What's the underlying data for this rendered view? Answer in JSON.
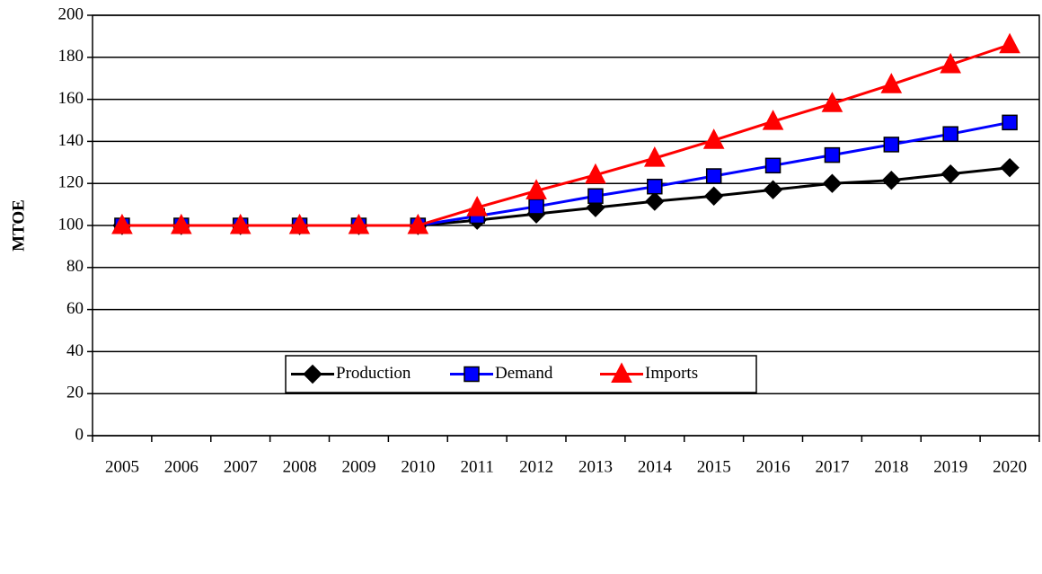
{
  "chart_data": {
    "type": "line",
    "y_label": "MTOE",
    "categories": [
      "2005",
      "2006",
      "2007",
      "2008",
      "2009",
      "2010",
      "2011",
      "2012",
      "2013",
      "2014",
      "2015",
      "2016",
      "2017",
      "2018",
      "2019",
      "2020"
    ],
    "series": [
      {
        "name": "Production",
        "color": "#000000",
        "marker": "diamond",
        "values": [
          100,
          100,
          100,
          100,
          100,
          100,
          102.5,
          105.5,
          108.5,
          111.5,
          114,
          117,
          120,
          121.5,
          124.5,
          127.5
        ]
      },
      {
        "name": "Demand",
        "color": "#0000ff",
        "marker": "square",
        "values": [
          100,
          100,
          100,
          100,
          100,
          100,
          104.5,
          109,
          114,
          118.5,
          123.5,
          128.5,
          133.5,
          138.5,
          143.5,
          149
        ]
      },
      {
        "name": "Imports",
        "color": "#ff0000",
        "marker": "triangle",
        "values": [
          100,
          100,
          100,
          100,
          100,
          100,
          108.5,
          116.5,
          124,
          132,
          140.5,
          149.5,
          158,
          167,
          176.5,
          186
        ]
      }
    ],
    "ylim": [
      0,
      200
    ],
    "yticks": [
      0,
      20,
      40,
      60,
      80,
      100,
      120,
      140,
      160,
      180,
      200
    ],
    "grid": true,
    "legend": "bottom"
  }
}
